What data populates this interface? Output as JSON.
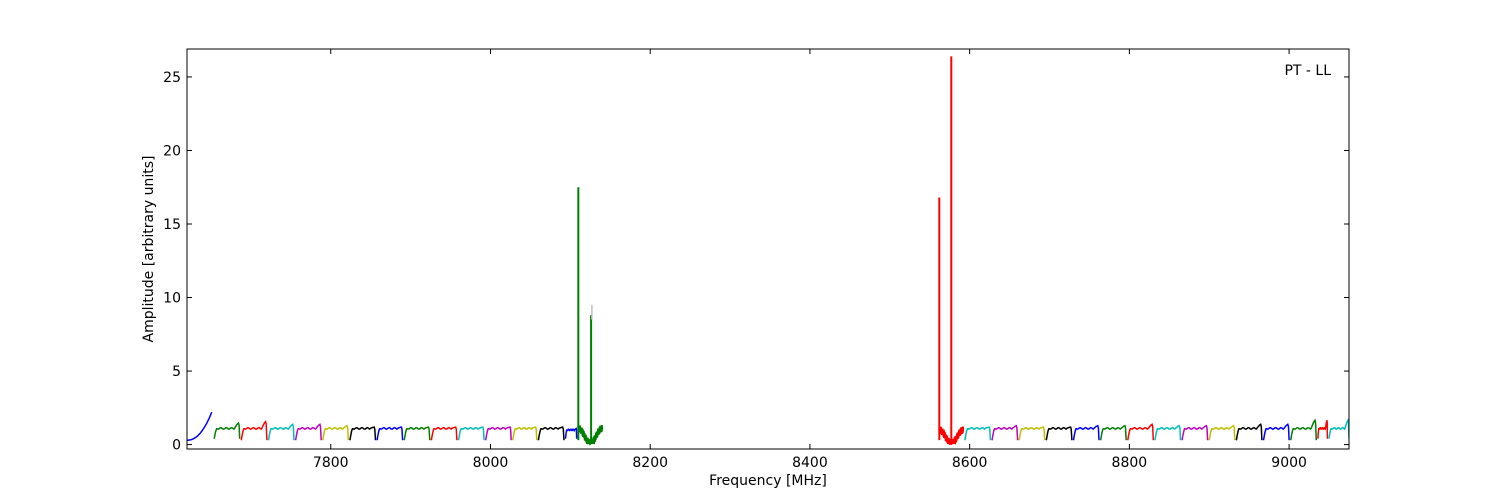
{
  "chart_data": {
    "type": "line",
    "title": "",
    "annotation": "PT - LL",
    "xlabel": "Frequency [MHz]",
    "ylabel": "Amplitude [arbitrary units]",
    "xlim": [
      7620,
      9075
    ],
    "ylim": [
      -0.3,
      26.9
    ],
    "x_ticks": [
      7800,
      8000,
      8200,
      8400,
      8600,
      8800,
      9000
    ],
    "y_ticks": [
      0,
      5,
      10,
      15,
      20,
      25
    ],
    "grid": false,
    "legend": "none",
    "series": [
      {
        "color": "#0000ff",
        "kind": "band",
        "start": 7620,
        "end": 7651,
        "shape": 1,
        "peak": 2.2,
        "base": 0.3,
        "level": 1.2
      },
      {
        "color": "#008000",
        "kind": "band",
        "start": 7654,
        "end": 7686,
        "shape": 0,
        "peak": 1.5,
        "base": 0.4,
        "level": 1.1
      },
      {
        "color": "#ff0000",
        "kind": "band",
        "start": 7688,
        "end": 7720,
        "shape": 0,
        "peak": 1.6,
        "base": 0.3,
        "level": 1.1
      },
      {
        "color": "#00bfbf",
        "kind": "band",
        "start": 7722,
        "end": 7754,
        "shape": 0,
        "peak": 1.4,
        "base": 0.3,
        "level": 1.1
      },
      {
        "color": "#bf00bf",
        "kind": "band",
        "start": 7756,
        "end": 7788,
        "shape": 0,
        "peak": 1.4,
        "base": 0.3,
        "level": 1.1
      },
      {
        "color": "#bfbf00",
        "kind": "band",
        "start": 7790,
        "end": 7822,
        "shape": 0,
        "peak": 1.3,
        "base": 0.3,
        "level": 1.1
      },
      {
        "color": "#000000",
        "kind": "band",
        "start": 7824,
        "end": 7856,
        "shape": 0,
        "peak": 1.2,
        "base": 0.3,
        "level": 1.1
      },
      {
        "color": "#0000ff",
        "kind": "band",
        "start": 7858,
        "end": 7890,
        "shape": 0,
        "peak": 1.2,
        "base": 0.3,
        "level": 1.1
      },
      {
        "color": "#008000",
        "kind": "band",
        "start": 7892,
        "end": 7924,
        "shape": 0,
        "peak": 1.2,
        "base": 0.3,
        "level": 1.1
      },
      {
        "color": "#ff0000",
        "kind": "band",
        "start": 7926,
        "end": 7958,
        "shape": 0,
        "peak": 1.2,
        "base": 0.3,
        "level": 1.1
      },
      {
        "color": "#00bfbf",
        "kind": "band",
        "start": 7960,
        "end": 7992,
        "shape": 0,
        "peak": 1.2,
        "base": 0.3,
        "level": 1.1
      },
      {
        "color": "#bf00bf",
        "kind": "band",
        "start": 7994,
        "end": 8026,
        "shape": 0,
        "peak": 1.2,
        "base": 0.3,
        "level": 1.1
      },
      {
        "color": "#bfbf00",
        "kind": "band",
        "start": 8028,
        "end": 8058,
        "shape": 0,
        "peak": 1.2,
        "base": 0.3,
        "level": 1.1
      },
      {
        "color": "#000000",
        "kind": "band",
        "start": 8060,
        "end": 8092,
        "shape": 0,
        "peak": 1.2,
        "base": 0.3,
        "level": 1.1
      },
      {
        "color": "#0000ff",
        "kind": "band",
        "start": 8094,
        "end": 8108,
        "shape": 0,
        "peak": 1.1,
        "base": 0.4,
        "level": 1.0
      },
      {
        "color": "#008000",
        "kind": "rfi",
        "start": 8110,
        "end": 8140,
        "noise": 1.1,
        "spikes": [
          {
            "x": 8110,
            "y": 17.5
          },
          {
            "x": 8126,
            "y": 8.8
          }
        ]
      },
      {
        "color": "#bfbfbf",
        "kind": "spike",
        "x": 8127,
        "y": 9.5
      },
      {
        "color": "#ff0000",
        "kind": "rfi",
        "start": 8562,
        "end": 8592,
        "noise": 1.0,
        "spikes": [
          {
            "x": 8562,
            "y": 16.8
          },
          {
            "x": 8577,
            "y": 26.4
          }
        ]
      },
      {
        "color": "#00bfbf",
        "kind": "band",
        "start": 8594,
        "end": 8626,
        "shape": 0,
        "peak": 1.2,
        "base": 0.3,
        "level": 1.1
      },
      {
        "color": "#bf00bf",
        "kind": "band",
        "start": 8628,
        "end": 8660,
        "shape": 0,
        "peak": 1.3,
        "base": 0.3,
        "level": 1.1
      },
      {
        "color": "#bfbf00",
        "kind": "band",
        "start": 8662,
        "end": 8694,
        "shape": 0,
        "peak": 1.2,
        "base": 0.3,
        "level": 1.1
      },
      {
        "color": "#000000",
        "kind": "band",
        "start": 8696,
        "end": 8728,
        "shape": 0,
        "peak": 1.2,
        "base": 0.3,
        "level": 1.1
      },
      {
        "color": "#0000ff",
        "kind": "band",
        "start": 8730,
        "end": 8762,
        "shape": 0,
        "peak": 1.3,
        "base": 0.3,
        "level": 1.1
      },
      {
        "color": "#008000",
        "kind": "band",
        "start": 8764,
        "end": 8796,
        "shape": 0,
        "peak": 1.3,
        "base": 0.3,
        "level": 1.1
      },
      {
        "color": "#ff0000",
        "kind": "band",
        "start": 8798,
        "end": 8830,
        "shape": 0,
        "peak": 1.4,
        "base": 0.3,
        "level": 1.1
      },
      {
        "color": "#00bfbf",
        "kind": "band",
        "start": 8832,
        "end": 8864,
        "shape": 0,
        "peak": 1.3,
        "base": 0.3,
        "level": 1.1
      },
      {
        "color": "#bf00bf",
        "kind": "band",
        "start": 8866,
        "end": 8898,
        "shape": 0,
        "peak": 1.3,
        "base": 0.3,
        "level": 1.1
      },
      {
        "color": "#bfbf00",
        "kind": "band",
        "start": 8900,
        "end": 8932,
        "shape": 0,
        "peak": 1.3,
        "base": 0.3,
        "level": 1.1
      },
      {
        "color": "#000000",
        "kind": "band",
        "start": 8934,
        "end": 8966,
        "shape": 0,
        "peak": 1.4,
        "base": 0.3,
        "level": 1.1
      },
      {
        "color": "#0000ff",
        "kind": "band",
        "start": 8968,
        "end": 9000,
        "shape": 0,
        "peak": 1.4,
        "base": 0.3,
        "level": 1.1
      },
      {
        "color": "#008000",
        "kind": "band",
        "start": 9002,
        "end": 9034,
        "shape": 0,
        "peak": 1.7,
        "base": 0.3,
        "level": 1.1
      },
      {
        "color": "#ff0000",
        "kind": "band",
        "start": 9036,
        "end": 9048,
        "shape": 0,
        "peak": 1.7,
        "base": 0.4,
        "level": 1.1
      },
      {
        "color": "#00bfbf",
        "kind": "band",
        "start": 9050,
        "end": 9075,
        "shape": 0,
        "peak": 1.7,
        "base": 0.4,
        "level": 1.1
      }
    ]
  }
}
